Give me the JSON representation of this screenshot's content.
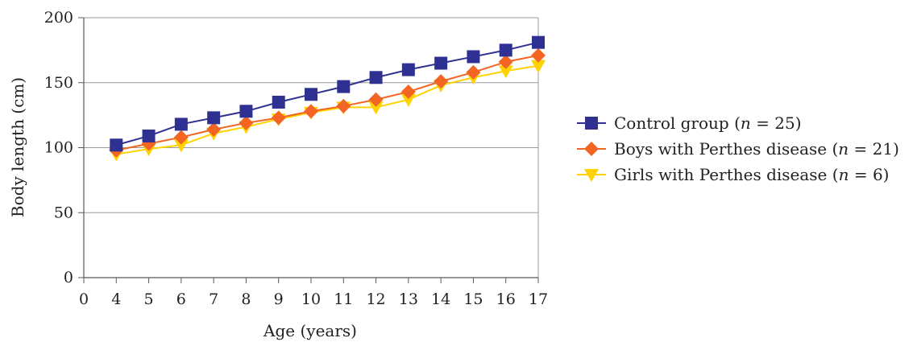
{
  "chart_data": {
    "type": "line",
    "xlabel": "Age (years)",
    "ylabel": "Body length (cm)",
    "ylim": [
      0,
      200
    ],
    "yticks": [
      0,
      50,
      100,
      150,
      200
    ],
    "categories": [
      "0",
      "4",
      "5",
      "6",
      "7",
      "8",
      "9",
      "10",
      "11",
      "12",
      "13",
      "14",
      "15",
      "16",
      "17"
    ],
    "grid": "horizontal",
    "legend_position": "right",
    "series": [
      {
        "name": "Control group",
        "legend_suffix": "(n = 25)",
        "n": "n = 25",
        "color": "#2e3192",
        "marker": "square",
        "x": [
          "4",
          "5",
          "6",
          "7",
          "8",
          "9",
          "10",
          "11",
          "12",
          "13",
          "14",
          "15",
          "16",
          "17"
        ],
        "values": [
          102,
          109,
          118,
          123,
          128,
          135,
          141,
          147,
          154,
          160,
          165,
          170,
          175,
          181
        ]
      },
      {
        "name": "Boys with Perthes disease",
        "legend_suffix": "(n = 21)",
        "n": "n = 21",
        "color": "#f26522",
        "marker": "diamond",
        "x": [
          "4",
          "5",
          "6",
          "7",
          "8",
          "9",
          "10",
          "11",
          "12",
          "13",
          "14",
          "15",
          "16",
          "17"
        ],
        "values": [
          98,
          103,
          108,
          114,
          119,
          123,
          128,
          132,
          137,
          143,
          151,
          158,
          166,
          171
        ]
      },
      {
        "name": "Girls with Perthes disease",
        "legend_suffix": "(n = 6)",
        "n": "n = 6",
        "color": "#ffd200",
        "marker": "triangle-down",
        "x": [
          "4",
          "5",
          "6",
          "7",
          "8",
          "9",
          "10",
          "11",
          "12",
          "13",
          "14",
          "15",
          "16",
          "17"
        ],
        "values": [
          95,
          99,
          102,
          111,
          116,
          122,
          127,
          131,
          131,
          137,
          148,
          154,
          159,
          163
        ]
      }
    ]
  }
}
